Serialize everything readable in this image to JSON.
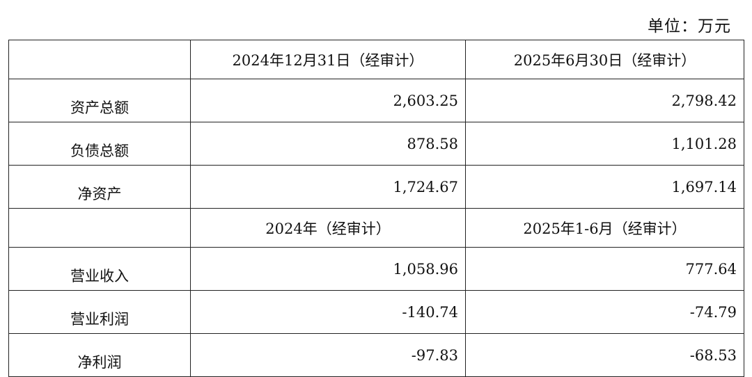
{
  "unit_label": "单位：万元",
  "header1": [
    "",
    "2024年12月31日（经审计）",
    "2025年6月30日（经审计）"
  ],
  "balance_rows": [
    {
      "label": "资产总额",
      "v1": "2,603.25",
      "v2": "2,798.42"
    },
    {
      "label": "负债总额",
      "v1": "878.58",
      "v2": "1,101.28"
    },
    {
      "label": "净资产",
      "v1": "1,724.67",
      "v2": "1,697.14"
    }
  ],
  "header2": [
    "",
    "2024年（经审计）",
    "2025年1-6月（经审计）"
  ],
  "income_rows": [
    {
      "label": "营业收入",
      "v1": "1,058.96",
      "v2": "777.64"
    },
    {
      "label": "营业利润",
      "v1": "-140.74",
      "v2": "-74.79"
    },
    {
      "label": "净利润",
      "v1": "-97.83",
      "v2": "-68.53"
    }
  ]
}
